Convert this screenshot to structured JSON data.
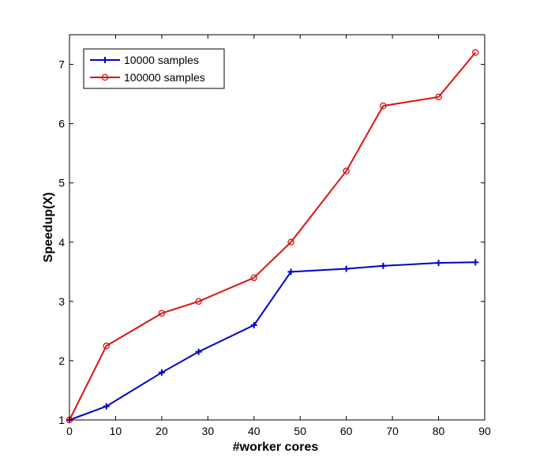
{
  "chart_data": {
    "type": "line",
    "title": "",
    "xlabel": "#worker cores",
    "ylabel": "Speedup(X)",
    "xlim": [
      0,
      90
    ],
    "ylim": [
      1,
      7.5
    ],
    "xticks": [
      0,
      10,
      20,
      30,
      40,
      50,
      60,
      70,
      80,
      90
    ],
    "yticks": [
      1,
      2,
      3,
      4,
      5,
      6,
      7
    ],
    "grid": false,
    "legend_position": "top-left",
    "series": [
      {
        "name": "10000 samples",
        "color": "#0000cc",
        "marker": "plus",
        "x": [
          0,
          8,
          20,
          28,
          40,
          48,
          60,
          68,
          80,
          88
        ],
        "y": [
          1.0,
          1.23,
          1.8,
          2.15,
          2.6,
          3.5,
          3.55,
          3.6,
          3.65,
          3.66
        ]
      },
      {
        "name": "100000 samples",
        "color": "#dd1111",
        "marker": "circle",
        "x": [
          0,
          8,
          20,
          28,
          40,
          48,
          60,
          68,
          80,
          88
        ],
        "y": [
          1.0,
          2.25,
          2.8,
          3.0,
          3.4,
          4.0,
          5.2,
          6.3,
          6.45,
          7.2
        ]
      }
    ]
  }
}
